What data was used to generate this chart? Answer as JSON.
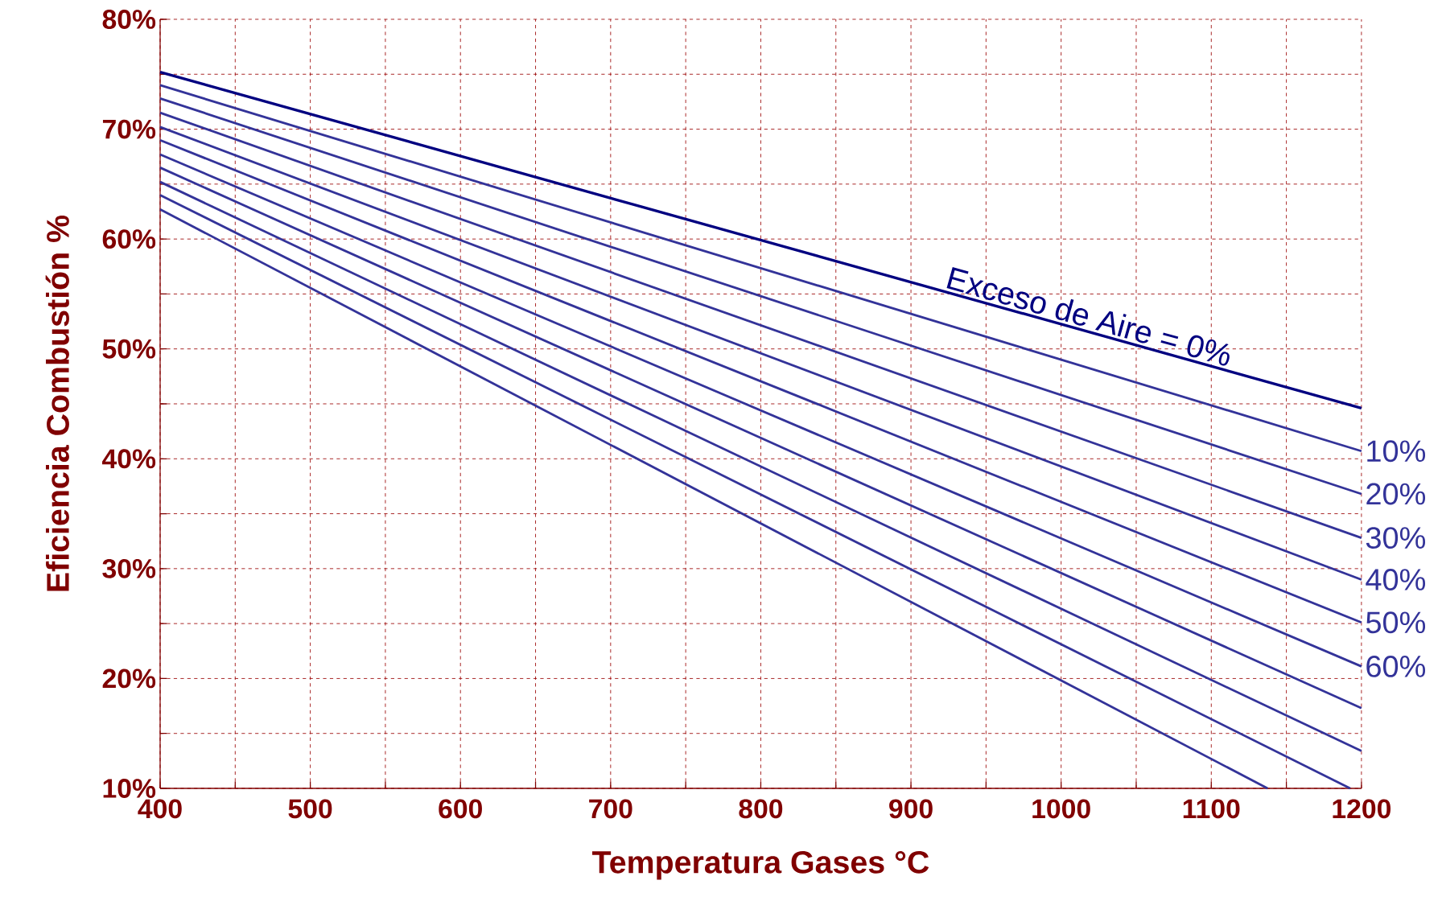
{
  "chart_data": {
    "type": "line",
    "xlabel": "Temperatura Gases °C",
    "ylabel": "Eficiencia Combustión %",
    "xlim": [
      400,
      1200
    ],
    "xticks": [
      400,
      {
        "value": 450,
        "label": null
      },
      500,
      {
        "value": 550,
        "label": null
      },
      600,
      {
        "value": 650,
        "label": null
      },
      700,
      {
        "value": 750,
        "label": null
      },
      800,
      {
        "value": 850,
        "label": null
      },
      900,
      {
        "value": 950,
        "label": null
      },
      1000,
      {
        "value": 1050,
        "label": null
      },
      1100,
      {
        "value": 1150,
        "label": null
      },
      1200
    ],
    "ylim": [
      10,
      80
    ],
    "yticks": [
      {
        "value": 10,
        "label": "10%"
      },
      {
        "value": 15,
        "label": null
      },
      {
        "value": 20,
        "label": "20%"
      },
      {
        "value": 25,
        "label": null
      },
      {
        "value": 30,
        "label": "30%"
      },
      {
        "value": 35,
        "label": null
      },
      {
        "value": 40,
        "label": "40%"
      },
      {
        "value": 45,
        "label": null
      },
      {
        "value": 50,
        "label": "50%"
      },
      {
        "value": 55,
        "label": null
      },
      {
        "value": 60,
        "label": "60%"
      },
      {
        "value": 65,
        "label": null
      },
      {
        "value": 70,
        "label": "70%"
      },
      {
        "value": 75,
        "label": null
      },
      {
        "value": 80,
        "label": "80%"
      }
    ],
    "grid": true,
    "marker": "none",
    "line_style": "solid",
    "series": [
      {
        "name": "Exceso de Aire = 0%",
        "color": "#000080",
        "x": [
          400,
          1200
        ],
        "values": [
          75.2,
          44.6
        ]
      },
      {
        "name": "10%",
        "color": "#333399",
        "x": [
          400,
          1200
        ],
        "values": [
          74.0,
          40.7
        ]
      },
      {
        "name": "20%",
        "color": "#333399",
        "x": [
          400,
          1200
        ],
        "values": [
          72.8,
          36.8
        ]
      },
      {
        "name": "30%",
        "color": "#333399",
        "x": [
          400,
          1200
        ],
        "values": [
          71.5,
          32.8
        ]
      },
      {
        "name": "40%",
        "color": "#333399",
        "x": [
          400,
          1200
        ],
        "values": [
          70.2,
          29.0
        ]
      },
      {
        "name": "50%",
        "color": "#333399",
        "x": [
          400,
          1200
        ],
        "values": [
          69.0,
          25.1
        ]
      },
      {
        "name": "60%",
        "color": "#333399",
        "x": [
          400,
          1200
        ],
        "values": [
          67.7,
          21.1
        ]
      },
      {
        "color": "#333399",
        "x": [
          400,
          1200
        ],
        "values": [
          66.5,
          17.3
        ]
      },
      {
        "color": "#333399",
        "x": [
          400,
          1200
        ],
        "values": [
          65.2,
          13.4
        ]
      },
      {
        "color": "#333399",
        "x": [
          400,
          1192.5
        ],
        "values": [
          64.0,
          10
        ]
      },
      {
        "color": "#333399",
        "x": [
          400,
          1137.5
        ],
        "values": [
          62.7,
          10
        ]
      }
    ]
  }
}
